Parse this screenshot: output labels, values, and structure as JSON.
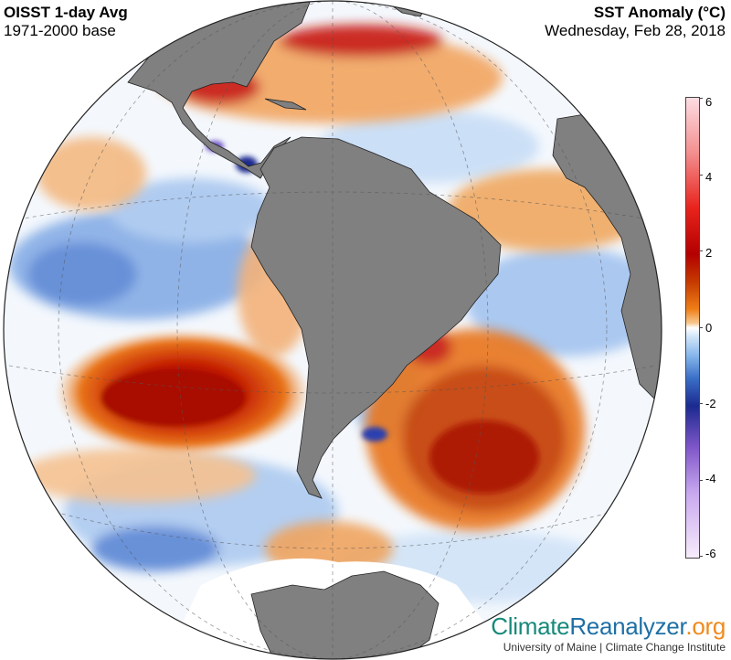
{
  "header": {
    "title_left": "OISST 1-day Avg",
    "subtitle_left": "1971-2000 base",
    "title_right": "SST Anomaly (°C)",
    "subtitle_right": "Wednesday, Feb 28, 2018"
  },
  "colorbar": {
    "ticks": [
      "6",
      "4",
      "2",
      "0",
      "-2",
      "-4",
      "-6"
    ],
    "range": [
      -6,
      6
    ]
  },
  "map": {
    "projection": "orthographic",
    "center": "South America",
    "land_color": "#808080",
    "ocean_base_color": "#ffffff",
    "warm_color": "#b30000",
    "cold_color": "#1b2a8f"
  },
  "branding": {
    "climate": "Climate",
    "reanalyzer": "Reanalyzer",
    "org": ".org",
    "subtitle": "University of Maine | Climate Change Institute"
  }
}
